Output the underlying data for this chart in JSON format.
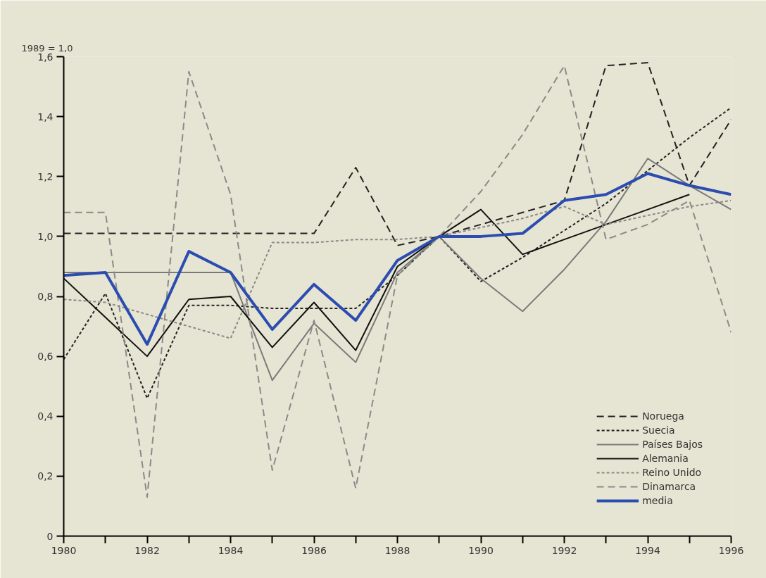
{
  "chart_data": {
    "type": "line",
    "ylabel": "1989 = 1,0",
    "x": [
      1980,
      1981,
      1982,
      1983,
      1984,
      1985,
      1986,
      1987,
      1988,
      1989,
      1990,
      1991,
      1992,
      1993,
      1994,
      1995,
      1996
    ],
    "xlim": [
      1980,
      1996
    ],
    "xticks": [
      1980,
      {
        "value": 1981,
        "label": null
      },
      1982,
      {
        "value": 1983,
        "label": null
      },
      1984,
      {
        "value": 1985,
        "label": null
      },
      1986,
      {
        "value": 1987,
        "label": null
      },
      1988,
      {
        "value": 1989,
        "label": null
      },
      1990,
      {
        "value": 1991,
        "label": null
      },
      1992,
      {
        "value": 1993,
        "label": null
      },
      1994,
      {
        "value": 1995,
        "label": null
      },
      1996
    ],
    "ylim": [
      0,
      1.6
    ],
    "yticks": [
      0,
      {
        "value": 0.2,
        "label": "0,2"
      },
      {
        "value": 0.4,
        "label": "0,4"
      },
      {
        "value": 0.6,
        "label": "0,6"
      },
      {
        "value": 0.8,
        "label": "0,8"
      },
      {
        "value": 1.0,
        "label": "1,0"
      },
      {
        "value": 1.2,
        "label": "1,2"
      },
      {
        "value": 1.4,
        "label": "1,4"
      },
      {
        "value": 1.6,
        "label": "1,6"
      }
    ],
    "grid": false,
    "legend": "bottom right",
    "marker": "none",
    "series": [
      {
        "name": "Noruega",
        "color": "#222222",
        "line_style": "dashed",
        "values": [
          1.01,
          1.01,
          1.01,
          1.01,
          1.01,
          1.01,
          1.01,
          1.23,
          0.97,
          1.0,
          1.04,
          1.08,
          1.12,
          1.57,
          1.58,
          1.17,
          1.39
        ]
      },
      {
        "name": "Suecia",
        "color": "#222222",
        "line_style": "dotted",
        "values": [
          0.59,
          0.81,
          0.46,
          0.77,
          0.77,
          0.76,
          0.76,
          0.76,
          0.87,
          1.0,
          0.85,
          0.93,
          1.02,
          1.11,
          1.22,
          1.33,
          1.43
        ]
      },
      {
        "name": "Países Bajos",
        "color": "#7a7a7a",
        "line_style": "solid",
        "values": [
          0.88,
          0.88,
          0.88,
          0.88,
          0.88,
          0.52,
          0.71,
          0.58,
          0.88,
          1.0,
          0.86,
          0.75,
          0.89,
          1.05,
          1.26,
          1.17,
          1.09
        ]
      },
      {
        "name": "Alemania",
        "color": "#111111",
        "line_style": "solid",
        "values": [
          0.86,
          0.73,
          0.6,
          0.79,
          0.8,
          0.63,
          0.78,
          0.62,
          0.9,
          1.0,
          1.09,
          0.94,
          0.99,
          1.04,
          1.09,
          1.14,
          null
        ]
      },
      {
        "name": "Reino Unido",
        "color": "#8a8a8a",
        "line_style": "dotted",
        "values": [
          0.79,
          0.78,
          0.74,
          0.7,
          0.66,
          0.98,
          0.98,
          0.99,
          0.99,
          1.0,
          1.03,
          1.06,
          1.1,
          1.04,
          1.07,
          1.1,
          1.12
        ]
      },
      {
        "name": "Dinamarca",
        "color": "#8a8a8a",
        "line_style": "dashed",
        "values": [
          1.08,
          1.08,
          0.13,
          1.55,
          1.14,
          0.22,
          0.72,
          0.16,
          0.87,
          1.0,
          1.15,
          1.34,
          1.57,
          0.99,
          1.04,
          1.12,
          0.68
        ]
      },
      {
        "name": "media",
        "color": "#2b4cb0",
        "line_style": "solid",
        "values": [
          0.87,
          0.88,
          0.64,
          0.95,
          0.88,
          0.69,
          0.84,
          0.72,
          0.92,
          1.0,
          1.0,
          1.01,
          1.12,
          1.14,
          1.21,
          1.17,
          1.14
        ]
      }
    ]
  }
}
